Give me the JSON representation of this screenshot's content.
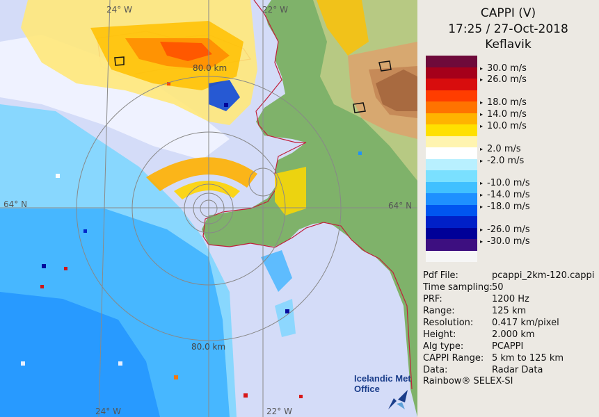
{
  "header": {
    "product": "CAPPI (V)",
    "datetime": "17:25 / 27-Oct-2018",
    "station": "Keflavik"
  },
  "legend": {
    "colors": [
      "#6e0a3a",
      "#a5001a",
      "#d80d0d",
      "#ff3d00",
      "#ff7300",
      "#ffb300",
      "#ffe000",
      "#fff4b0",
      "#ffffff",
      "#b8f0ff",
      "#7ae0ff",
      "#40c0ff",
      "#1e90ff",
      "#0055f0",
      "#0020c8",
      "#000098",
      "#3d0f80",
      "#f6f6f6"
    ],
    "labels": [
      "30.0 m/s",
      "26.0 m/s",
      "18.0 m/s",
      "14.0 m/s",
      "10.0 m/s",
      "2.0 m/s",
      "-2.0 m/s",
      "-10.0 m/s",
      "-14.0 m/s",
      "-18.0 m/s",
      "-26.0 m/s",
      "-30.0 m/s"
    ]
  },
  "info": [
    {
      "key": "Pdf File:",
      "value": "pcappi_2km-120.cappi"
    },
    {
      "key": "Time sampling:",
      "value": "50"
    },
    {
      "key": "PRF:",
      "value": "1200 Hz"
    },
    {
      "key": "Range:",
      "value": "125 km"
    },
    {
      "key": "Resolution:",
      "value": "0.417 km/pixel"
    },
    {
      "key": "Height:",
      "value": "2.000 km"
    },
    {
      "key": "Alg type:",
      "value": "PCAPPI"
    },
    {
      "key": "CAPPI Range:",
      "value": "5 km to 125 km"
    },
    {
      "key": "Data:",
      "value": "Radar Data"
    }
  ],
  "brand": "Rainbow® SELEX-SI",
  "logo": {
    "line1": "Icelandic Met",
    "line2": "Office"
  },
  "map": {
    "lon_top_left": "24° W",
    "lon_top_right": "22° W",
    "lon_bottom_left": "24° W",
    "lon_bottom_right": "22° W",
    "lat_left": "64° N",
    "lat_right": "64° N",
    "range_top": "80.0 km",
    "range_bottom": "80.0 km"
  }
}
